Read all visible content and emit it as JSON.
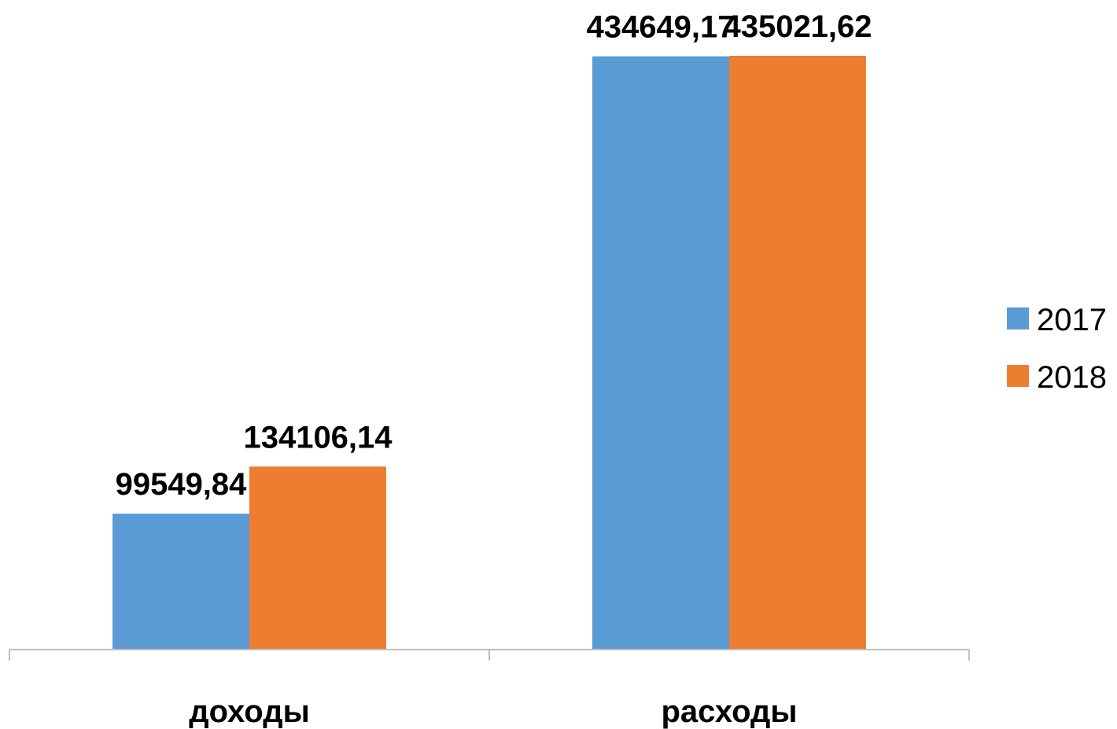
{
  "chart_data": {
    "type": "bar",
    "categories": [
      "доходы",
      "расходы"
    ],
    "series": [
      {
        "name": "2017",
        "values": [
          99549.84,
          434649.17
        ],
        "labels": [
          "99549,84",
          "434649,17"
        ],
        "color": "#5B9BD5"
      },
      {
        "name": "2018",
        "values": [
          134106.14,
          435021.62
        ],
        "labels": [
          "134106,14",
          "435021,62"
        ],
        "color": "#ED7D31"
      }
    ],
    "title": "",
    "xlabel": "",
    "ylabel": "",
    "ylim": [
      0,
      435021.62
    ],
    "grid": false,
    "legend_position": "right"
  }
}
